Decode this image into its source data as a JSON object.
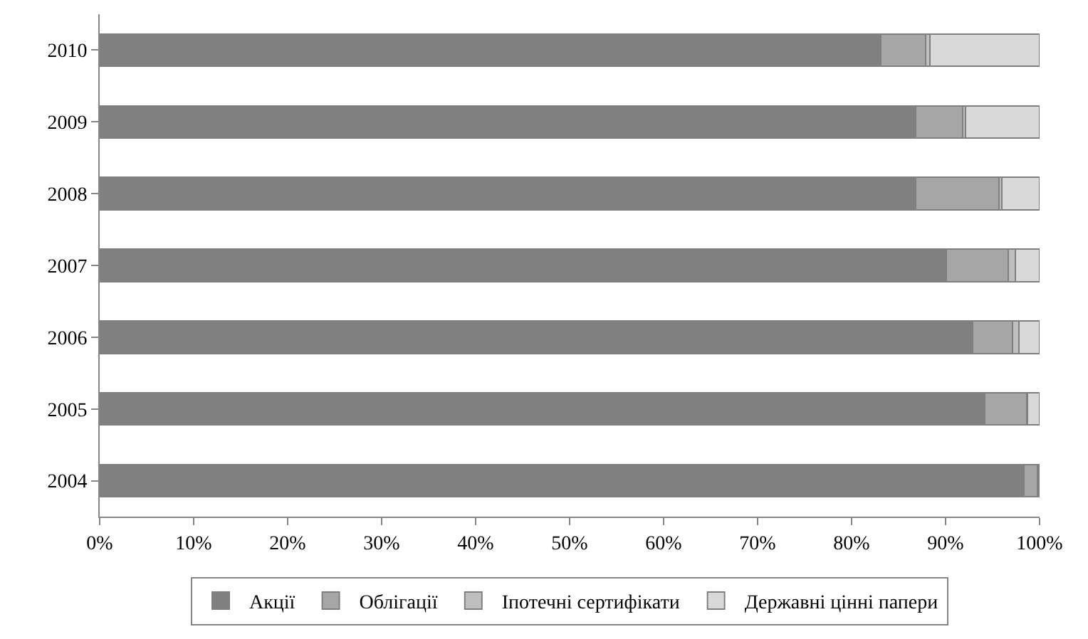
{
  "chart_data": {
    "type": "bar",
    "orientation": "horizontal",
    "stacked": true,
    "categories": [
      "2010",
      "2009",
      "2008",
      "2007",
      "2006",
      "2005",
      "2004"
    ],
    "series": [
      {
        "name": "Акції",
        "color": "#808080",
        "values": [
          83.1,
          86.8,
          86.8,
          90.1,
          92.9,
          94.2,
          98.3
        ]
      },
      {
        "name": "Облігації",
        "color": "#a6a6a6",
        "values": [
          4.8,
          5.0,
          8.9,
          6.6,
          4.2,
          4.4,
          1.5
        ]
      },
      {
        "name": "Іпотечні сертифікати",
        "color": "#bfbfbf",
        "values": [
          0.4,
          0.3,
          0.3,
          0.7,
          0.7,
          0.1,
          0.1
        ]
      },
      {
        "name": "Державні цінні папери",
        "color": "#d9d9d9",
        "values": [
          11.7,
          7.9,
          4.0,
          2.6,
          2.2,
          1.3,
          0.1
        ]
      }
    ],
    "xlim": [
      0,
      100
    ],
    "xticks": [
      {
        "value": 0,
        "label": "0%"
      },
      {
        "value": 10,
        "label": "10%"
      },
      {
        "value": 20,
        "label": "20%"
      },
      {
        "value": 30,
        "label": "30%"
      },
      {
        "value": 40,
        "label": "40%"
      },
      {
        "value": 50,
        "label": "50%"
      },
      {
        "value": 60,
        "label": "60%"
      },
      {
        "value": 70,
        "label": "70%"
      },
      {
        "value": 80,
        "label": "80%"
      },
      {
        "value": 90,
        "label": "90%"
      },
      {
        "value": 100,
        "label": "100%"
      }
    ],
    "grid": false,
    "legend": "bottom"
  }
}
